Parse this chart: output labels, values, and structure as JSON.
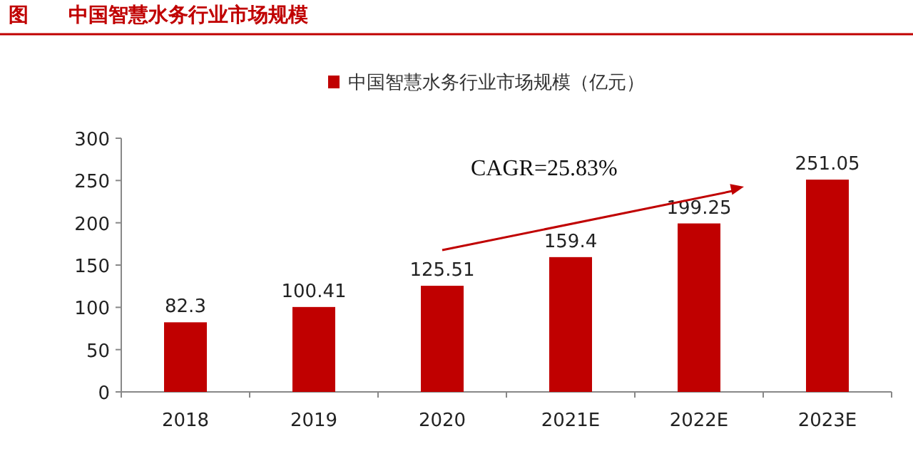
{
  "chart_data": {
    "type": "bar",
    "title": "图　　中国智慧水务行业市场规模",
    "categories": [
      "2018",
      "2019",
      "2020",
      "2021E",
      "2022E",
      "2023E"
    ],
    "series": [
      {
        "name": "中国智慧水务行业市场规模（亿元）",
        "color": "#c00000",
        "values": [
          82.3,
          100.41,
          125.51,
          159.4,
          199.25,
          251.05
        ]
      }
    ],
    "ylim": [
      0,
      300
    ],
    "yticks": [
      0,
      50,
      100,
      150,
      200,
      250,
      300
    ],
    "data_labels": true,
    "legend": "top",
    "grid": false,
    "annotations": [
      "CAGR=25.83%"
    ]
  }
}
